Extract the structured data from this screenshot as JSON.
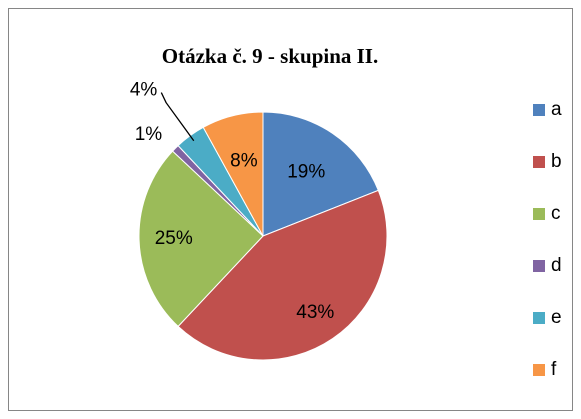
{
  "chart_data": {
    "type": "pie",
    "title": "Otázka č. 9 - skupina II.",
    "categories": [
      "a",
      "b",
      "c",
      "d",
      "e",
      "f"
    ],
    "values": [
      19,
      43,
      25,
      1,
      4,
      8
    ],
    "value_labels": [
      "19%",
      "43%",
      "25%",
      "1%",
      "4%",
      "8%"
    ],
    "colors": [
      "#4f81bd",
      "#c0504d",
      "#9bbb59",
      "#8064a2",
      "#4bacc6",
      "#f79646"
    ],
    "legend": "right"
  }
}
